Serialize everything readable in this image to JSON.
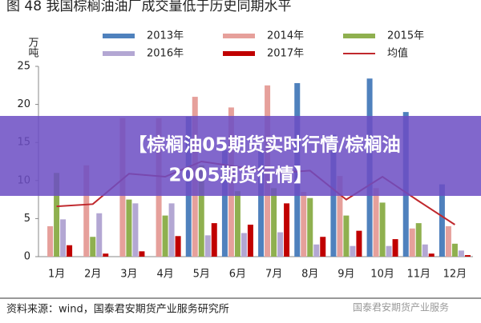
{
  "chart_data": {
    "type": "bar",
    "title": "图 48 我国棕榈油油厂成交量低于历史同期水平",
    "y_label": "万吨",
    "categories": [
      "1月",
      "2月",
      "3月",
      "4月",
      "5月",
      "6月",
      "7月",
      "8月",
      "9月",
      "10月",
      "11月",
      "12月"
    ],
    "series": [
      {
        "name": "2013年",
        "color": "#4f81bd",
        "values": [
          null,
          null,
          null,
          null,
          18.4,
          14,
          14,
          22.8,
          16,
          23.4,
          19,
          9.5
        ]
      },
      {
        "name": "2014年",
        "color": "#e6a09b",
        "values": [
          4,
          12,
          18.2,
          18.2,
          21,
          19.6,
          22.5,
          8.5,
          10.6,
          9,
          3.7,
          4
        ]
      },
      {
        "name": "2015年",
        "color": "#8fb04f",
        "values": [
          11,
          2.6,
          7.5,
          5.4,
          12,
          8.6,
          9,
          7.7,
          5.4,
          7.1,
          4.4,
          1.7
        ]
      },
      {
        "name": "2016年",
        "color": "#b3a7d3",
        "values": [
          4.9,
          5.7,
          7,
          7,
          2.8,
          3.1,
          3.2,
          1.6,
          1.4,
          1.4,
          1.6,
          0.8
        ]
      },
      {
        "name": "2017年",
        "color": "#c00000",
        "values": [
          1.5,
          0.4,
          0.7,
          2.7,
          4.4,
          4.2,
          7,
          2.6,
          3.4,
          2.3,
          0.4,
          0.2
        ]
      },
      {
        "name": "均值",
        "type": "line",
        "color": "#c0282d",
        "values": [
          6.6,
          6.9,
          10.9,
          10.5,
          12.5,
          11.8,
          11,
          11.3,
          7.5,
          10.5,
          7.3,
          4.2
        ]
      }
    ],
    "ylim": [
      0,
      25
    ],
    "yticks": [
      0,
      5,
      10,
      15,
      20,
      25
    ]
  },
  "source": "资料来源：wind，国泰君安期货产业服务研究所",
  "watermark": "国泰君安期货产业服务",
  "banner": [
    "【棕榈油05期货实时行情/棕榈油",
    "2005期货行情】"
  ]
}
